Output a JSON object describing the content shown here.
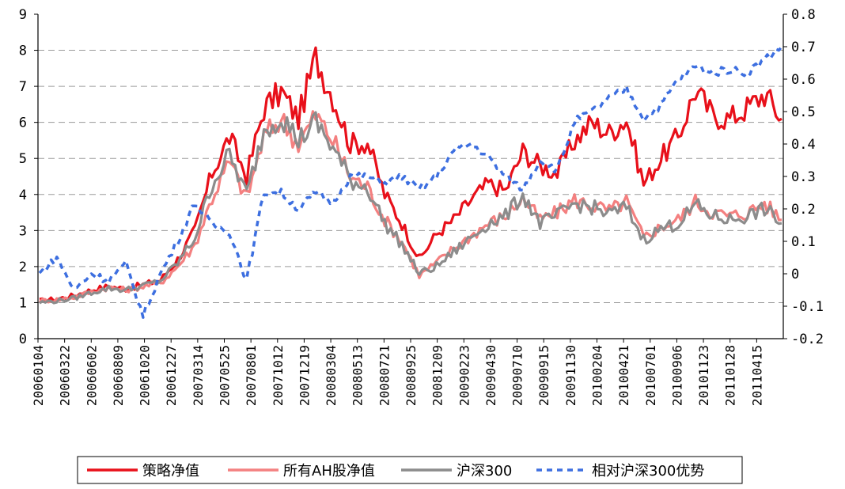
{
  "chart_data": {
    "type": "line",
    "grid": "horizontal dashed",
    "legend_position": "bottom",
    "y_left": {
      "min": 0,
      "max": 9,
      "ticks": [
        "0",
        "1",
        "2",
        "3",
        "4",
        "5",
        "6",
        "7",
        "8",
        "9"
      ]
    },
    "y_right": {
      "min": -0.2,
      "max": 0.8,
      "ticks": [
        "-0.2",
        "-0.1",
        "0",
        "0.1",
        "0.2",
        "0.3",
        "0.4",
        "0.5",
        "0.6",
        "0.7",
        "0.8"
      ]
    },
    "x_tick_labels": [
      "20060104",
      "20060322",
      "20060602",
      "20060809",
      "20061020",
      "20061227",
      "20070314",
      "20070525",
      "20070801",
      "20071012",
      "20071219",
      "20080304",
      "20080513",
      "20080721",
      "20080925",
      "20081209",
      "20090223",
      "20090430",
      "20090710",
      "20090915",
      "20091130",
      "20100204",
      "20100421",
      "20100701",
      "20100906",
      "20101123",
      "20110128",
      "20110415"
    ],
    "series": [
      {
        "name": "策略净值",
        "axis": "left",
        "color": "#e8101a",
        "style": "solid",
        "values": [
          1.05,
          1.1,
          1.2,
          1.35,
          1.45,
          1.38,
          1.5,
          1.62,
          2.2,
          3.0,
          4.6,
          5.6,
          4.5,
          6.4,
          6.85,
          6.1,
          7.8,
          6.7,
          5.4,
          5.45,
          4.0,
          3.2,
          2.2,
          2.9,
          3.3,
          3.85,
          4.3,
          4.1,
          5.2,
          4.8,
          4.6,
          5.5,
          6.0,
          5.7,
          6.1,
          4.3,
          5.0,
          5.6,
          6.9,
          6.2,
          6.1,
          6.4,
          6.8,
          6.1
        ]
      },
      {
        "name": "所有AH股净值",
        "axis": "left",
        "color": "#f48080",
        "style": "solid",
        "values": [
          1.05,
          1.08,
          1.15,
          1.3,
          1.42,
          1.35,
          1.45,
          1.55,
          2.0,
          2.6,
          3.9,
          4.9,
          3.9,
          5.6,
          6.1,
          5.4,
          6.2,
          5.5,
          4.5,
          4.2,
          3.3,
          2.7,
          1.75,
          2.1,
          2.5,
          2.85,
          3.2,
          3.4,
          3.9,
          3.3,
          3.5,
          3.85,
          3.7,
          3.55,
          3.8,
          2.8,
          3.1,
          3.3,
          3.8,
          3.5,
          3.4,
          3.5,
          3.75,
          3.3
        ]
      },
      {
        "name": "沪深300",
        "axis": "left",
        "color": "#8c8c8c",
        "style": "solid",
        "values": [
          1.0,
          1.05,
          1.12,
          1.28,
          1.4,
          1.35,
          1.47,
          1.6,
          2.1,
          2.8,
          4.3,
          5.1,
          4.0,
          5.8,
          6.2,
          5.5,
          6.0,
          5.3,
          4.4,
          4.2,
          3.2,
          2.6,
          1.8,
          2.0,
          2.4,
          2.8,
          3.2,
          3.4,
          4.0,
          3.2,
          3.4,
          3.75,
          3.65,
          3.45,
          3.65,
          2.75,
          3.05,
          3.2,
          3.7,
          3.4,
          3.3,
          3.4,
          3.6,
          3.2
        ]
      },
      {
        "name": "相对沪深300优势",
        "axis": "right",
        "color": "#3d6fe0",
        "style": "dashed",
        "values": [
          0.0,
          0.05,
          -0.05,
          0.0,
          -0.02,
          0.03,
          -0.13,
          0.0,
          0.1,
          0.22,
          0.15,
          0.13,
          -0.02,
          0.25,
          0.25,
          0.2,
          0.25,
          0.22,
          0.3,
          0.3,
          0.28,
          0.3,
          0.26,
          0.3,
          0.38,
          0.4,
          0.36,
          0.3,
          0.26,
          0.35,
          0.32,
          0.47,
          0.5,
          0.54,
          0.57,
          0.48,
          0.52,
          0.6,
          0.64,
          0.62,
          0.63,
          0.62,
          0.66,
          0.7
        ]
      }
    ]
  }
}
